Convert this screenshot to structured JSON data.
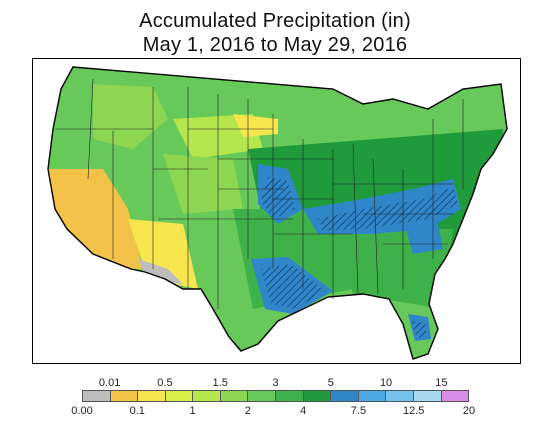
{
  "title": {
    "line1": "Accumulated Precipitation (in)",
    "line2": "May 1, 2016 to May 29, 2016"
  },
  "legend": {
    "bins": [
      {
        "value": "0.00",
        "color": "#bdbdbd"
      },
      {
        "value": "0.01",
        "color": "#f5c249"
      },
      {
        "value": "0.1",
        "color": "#f7e64e"
      },
      {
        "value": "0.5",
        "color": "#d8ef4a"
      },
      {
        "value": "1",
        "color": "#b5e64e"
      },
      {
        "value": "1.5",
        "color": "#8cd651"
      },
      {
        "value": "2",
        "color": "#66c95a"
      },
      {
        "value": "3",
        "color": "#3fb14a"
      },
      {
        "value": "4",
        "color": "#1f9b3c"
      },
      {
        "value": "5",
        "color": "#2f87c9"
      },
      {
        "value": "7.5",
        "color": "#4ca8de"
      },
      {
        "value": "10",
        "color": "#74c2ec"
      },
      {
        "value": "12.5",
        "color": "#a7d9f1"
      },
      {
        "value": "15",
        "color": "#d78ce6"
      },
      {
        "value": "20",
        "color": ""
      }
    ]
  },
  "map": {
    "colors": {
      "dry_gray": "#bdbdbd",
      "orange": "#f5c249",
      "yellow": "#f7e64e",
      "lime": "#b5e64e",
      "light_green": "#8cd651",
      "green": "#66c95a",
      "med_green": "#3fb14a",
      "dark_green": "#1f9b3c",
      "blue": "#2f87c9",
      "light_blue": "#4ca8de"
    }
  }
}
